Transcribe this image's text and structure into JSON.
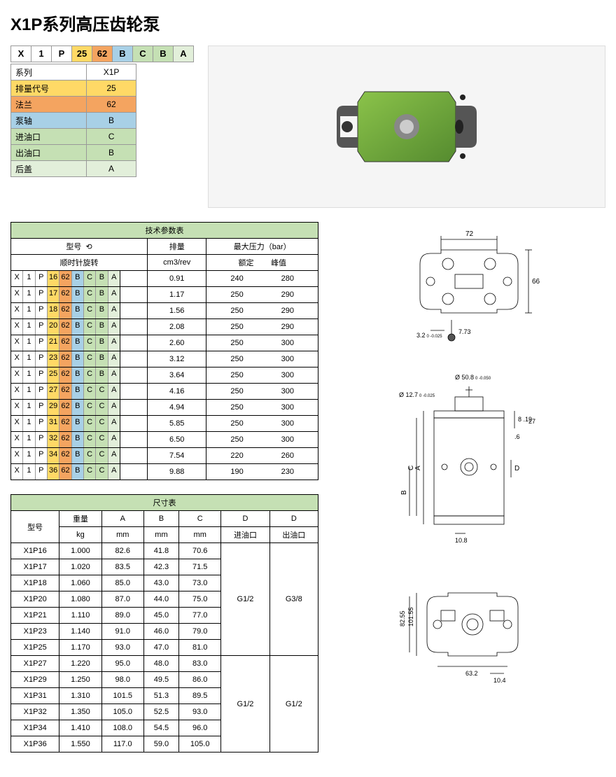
{
  "title": "X1P系列高压齿轮泵",
  "code_cells": [
    {
      "v": "X",
      "c": "c-white"
    },
    {
      "v": "1",
      "c": "c-white"
    },
    {
      "v": "P",
      "c": "c-white"
    },
    {
      "v": "25",
      "c": "c-yellow"
    },
    {
      "v": "62",
      "c": "c-orange"
    },
    {
      "v": "B",
      "c": "c-blue"
    },
    {
      "v": "C",
      "c": "c-green"
    },
    {
      "v": "B",
      "c": "c-green"
    },
    {
      "v": "A",
      "c": "c-lgreen"
    }
  ],
  "legend": [
    {
      "label": "系列",
      "val": "X1P",
      "c": "c-white"
    },
    {
      "label": "排量代号",
      "val": "25",
      "c": "c-yellow"
    },
    {
      "label": "法兰",
      "val": "62",
      "c": "c-orange"
    },
    {
      "label": "泵轴",
      "val": "B",
      "c": "c-blue"
    },
    {
      "label": "进油口",
      "val": "C",
      "c": "c-green"
    },
    {
      "label": "出油口",
      "val": "B",
      "c": "c-green"
    },
    {
      "label": "后盖",
      "val": "A",
      "c": "c-lgreen"
    }
  ],
  "spec_title": "技术参数表",
  "spec_headers": {
    "model": "型号",
    "disp": "排量",
    "maxp": "最大压力（bar）",
    "rot": "顺时针旋转",
    "unit": "cm3/rev",
    "rated": "额定",
    "peak": "峰值"
  },
  "spec_rows": [
    {
      "m": [
        "X",
        "1",
        "P",
        "16",
        "62",
        "B",
        "C",
        "B",
        "A"
      ],
      "d": "0.91",
      "r": "240",
      "p": "280"
    },
    {
      "m": [
        "X",
        "1",
        "P",
        "17",
        "62",
        "B",
        "C",
        "B",
        "A"
      ],
      "d": "1.17",
      "r": "250",
      "p": "290"
    },
    {
      "m": [
        "X",
        "1",
        "P",
        "18",
        "62",
        "B",
        "C",
        "B",
        "A"
      ],
      "d": "1.56",
      "r": "250",
      "p": "290"
    },
    {
      "m": [
        "X",
        "1",
        "P",
        "20",
        "62",
        "B",
        "C",
        "B",
        "A"
      ],
      "d": "2.08",
      "r": "250",
      "p": "290"
    },
    {
      "m": [
        "X",
        "1",
        "P",
        "21",
        "62",
        "B",
        "C",
        "B",
        "A"
      ],
      "d": "2.60",
      "r": "250",
      "p": "300"
    },
    {
      "m": [
        "X",
        "1",
        "P",
        "23",
        "62",
        "B",
        "C",
        "B",
        "A"
      ],
      "d": "3.12",
      "r": "250",
      "p": "300"
    },
    {
      "m": [
        "X",
        "1",
        "P",
        "25",
        "62",
        "B",
        "C",
        "B",
        "A"
      ],
      "d": "3.64",
      "r": "250",
      "p": "300"
    },
    {
      "m": [
        "X",
        "1",
        "P",
        "27",
        "62",
        "B",
        "C",
        "C",
        "A"
      ],
      "d": "4.16",
      "r": "250",
      "p": "300"
    },
    {
      "m": [
        "X",
        "1",
        "P",
        "29",
        "62",
        "B",
        "C",
        "C",
        "A"
      ],
      "d": "4.94",
      "r": "250",
      "p": "300"
    },
    {
      "m": [
        "X",
        "1",
        "P",
        "31",
        "62",
        "B",
        "C",
        "C",
        "A"
      ],
      "d": "5.85",
      "r": "250",
      "p": "300"
    },
    {
      "m": [
        "X",
        "1",
        "P",
        "32",
        "62",
        "B",
        "C",
        "C",
        "A"
      ],
      "d": "6.50",
      "r": "250",
      "p": "300"
    },
    {
      "m": [
        "X",
        "1",
        "P",
        "34",
        "62",
        "B",
        "C",
        "C",
        "A"
      ],
      "d": "7.54",
      "r": "220",
      "p": "260"
    },
    {
      "m": [
        "X",
        "1",
        "P",
        "36",
        "62",
        "B",
        "C",
        "C",
        "A"
      ],
      "d": "9.88",
      "r": "190",
      "p": "230"
    }
  ],
  "model_colors": [
    "c-white",
    "c-white",
    "c-white",
    "c-yellow",
    "c-orange",
    "c-blue",
    "c-green",
    "c-green",
    "c-lgreen"
  ],
  "size_title": "尺寸表",
  "size_headers": {
    "model": "型号",
    "weight": "重量",
    "a": "A",
    "b": "B",
    "c": "C",
    "d": "D",
    "kg": "kg",
    "mm": "mm",
    "in": "进油口",
    "out": "出油口"
  },
  "size_rows": [
    {
      "m": "X1P16",
      "w": "1.000",
      "a": "82.6",
      "b": "41.8",
      "c": "70.6"
    },
    {
      "m": "X1P17",
      "w": "1.020",
      "a": "83.5",
      "b": "42.3",
      "c": "71.5"
    },
    {
      "m": "X1P18",
      "w": "1.060",
      "a": "85.0",
      "b": "43.0",
      "c": "73.0"
    },
    {
      "m": "X1P20",
      "w": "1.080",
      "a": "87.0",
      "b": "44.0",
      "c": "75.0"
    },
    {
      "m": "X1P21",
      "w": "1.110",
      "a": "89.0",
      "b": "45.0",
      "c": "77.0"
    },
    {
      "m": "X1P23",
      "w": "1.140",
      "a": "91.0",
      "b": "46.0",
      "c": "79.0"
    },
    {
      "m": "X1P25",
      "w": "1.170",
      "a": "93.0",
      "b": "47.0",
      "c": "81.0"
    },
    {
      "m": "X1P27",
      "w": "1.220",
      "a": "95.0",
      "b": "48.0",
      "c": "83.0"
    },
    {
      "m": "X1P29",
      "w": "1.250",
      "a": "98.0",
      "b": "49.5",
      "c": "86.0"
    },
    {
      "m": "X1P31",
      "w": "1.310",
      "a": "101.5",
      "b": "51.3",
      "c": "89.5"
    },
    {
      "m": "X1P32",
      "w": "1.350",
      "a": "105.0",
      "b": "52.5",
      "c": "93.0"
    },
    {
      "m": "X1P34",
      "w": "1.410",
      "a": "108.0",
      "b": "54.5",
      "c": "96.0"
    },
    {
      "m": "X1P36",
      "w": "1.550",
      "a": "117.0",
      "b": "59.0",
      "c": "105.0"
    }
  ],
  "port_groups": [
    {
      "rows": 7,
      "in": "G1/2",
      "out": "G3/8"
    },
    {
      "rows": 6,
      "in": "G1/2",
      "out": "G1/2"
    }
  ],
  "dims": {
    "d72": "72",
    "d66": "66",
    "d32": "3.2",
    "d32tol": "0  -0.025",
    "d773": "7.73",
    "d508": "Ø 50.8",
    "d508tol": "0  -0.050",
    "d127": "Ø 12.7",
    "d127tol": "0  -0.025",
    "d819": "8  .19",
    "d27": "27",
    "d6": ".6",
    "da": "A",
    "db": "B",
    "dc": "C",
    "dd": "D",
    "d108": "10.8",
    "d10155": "101.55",
    "d8255": "82.55",
    "d632": "63.2",
    "d104": "10.4"
  }
}
